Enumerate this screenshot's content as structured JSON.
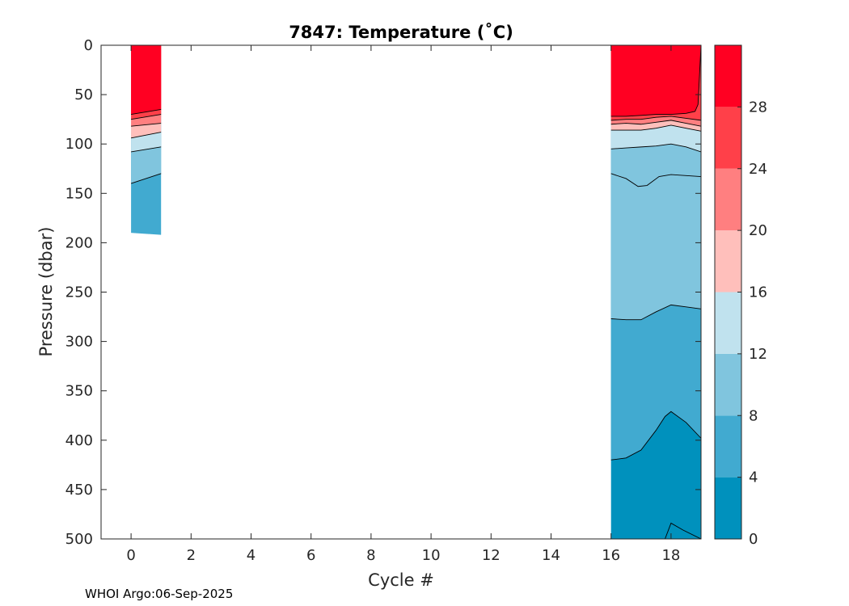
{
  "chart_data": {
    "type": "contour",
    "title": "7847:  Temperature (˚C)",
    "xlabel": "Cycle #",
    "ylabel": "Pressure (dbar)",
    "xlim": [
      -1,
      19
    ],
    "ylim": [
      0,
      500
    ],
    "y_reversed": true,
    "xticks": [
      "0",
      "2",
      "4",
      "6",
      "8",
      "10",
      "12",
      "14",
      "16",
      "18"
    ],
    "yticks": [
      "0",
      "50",
      "100",
      "150",
      "200",
      "250",
      "300",
      "350",
      "400",
      "450",
      "500"
    ],
    "colorbar": {
      "range": [
        0,
        32
      ],
      "tick_labels": [
        "0",
        "4",
        "8",
        "12",
        "16",
        "20",
        "24",
        "28"
      ],
      "levels": [
        {
          "min": 0,
          "max": 4,
          "color": "#0091bd"
        },
        {
          "min": 4,
          "max": 8,
          "color": "#41aad0"
        },
        {
          "min": 8,
          "max": 12,
          "color": "#80c5de"
        },
        {
          "min": 12,
          "max": 16,
          "color": "#c0e2ee"
        },
        {
          "min": 16,
          "max": 20,
          "color": "#ffbfbb"
        },
        {
          "min": 20,
          "max": 24,
          "color": "#ff7f80"
        },
        {
          "min": 24,
          "max": 28,
          "color": "#ff4049"
        },
        {
          "min": 28,
          "max": 32,
          "color": "#ff0022"
        }
      ]
    },
    "data_blocks": [
      {
        "name": "cycles 0-1",
        "x_range": [
          0,
          1
        ],
        "bottom_pressure": [
          190,
          192
        ],
        "isotherms": [
          {
            "level": 28,
            "x": [
              0,
              1
            ],
            "y": [
              70,
              65
            ]
          },
          {
            "level": 24,
            "x": [
              0,
              1
            ],
            "y": [
              75,
              70
            ]
          },
          {
            "level": 20,
            "x": [
              0,
              1
            ],
            "y": [
              82,
              79
            ]
          },
          {
            "level": 16,
            "x": [
              0,
              1
            ],
            "y": [
              94,
              88
            ]
          },
          {
            "level": 12,
            "x": [
              0,
              1
            ],
            "y": [
              108,
              103
            ]
          },
          {
            "level": 8,
            "x": [
              0,
              1
            ],
            "y": [
              140,
              130
            ]
          }
        ]
      },
      {
        "name": "cycles 16-19",
        "x_range": [
          16,
          19
        ],
        "bottom_pressure": [
          500,
          500
        ],
        "isotherms": [
          {
            "level": 28,
            "x": [
              16,
              16.5,
              17,
              17.5,
              18,
              18.5,
              18.8,
              18.9,
              19
            ],
            "y": [
              72,
              72,
              71,
              70,
              70,
              69,
              67,
              60,
              0
            ]
          },
          {
            "level": 24,
            "x": [
              16,
              16.5,
              17,
              17.5,
              18,
              18.5,
              19
            ],
            "y": [
              76,
              75,
              75,
              73,
              72,
              74,
              76
            ]
          },
          {
            "level": 20,
            "x": [
              16,
              16.5,
              17,
              17.5,
              18,
              18.5,
              19
            ],
            "y": [
              80,
              79,
              80,
              78,
              76,
              79,
              82
            ]
          },
          {
            "level": 16,
            "x": [
              16,
              16.5,
              17,
              17.5,
              18,
              18.5,
              19
            ],
            "y": [
              86,
              86,
              86,
              84,
              81,
              84,
              87
            ]
          },
          {
            "level": 12,
            "x": [
              16,
              16.5,
              17,
              17.5,
              18,
              18.5,
              19
            ],
            "y": [
              105,
              104,
              103,
              102,
              100,
              103,
              108
            ]
          },
          {
            "level": 8,
            "x": [
              16,
              16.5,
              16.9,
              17.2,
              17.6,
              18,
              18.5,
              19
            ],
            "y": [
              130,
              135,
              143,
              142,
              133,
              131,
              132,
              133
            ]
          },
          {
            "level": 8,
            "x": [
              16,
              16.5,
              17,
              17.5,
              18,
              18.5,
              19
            ],
            "y": [
              277,
              278,
              278,
              270,
              263,
              265,
              267
            ]
          },
          {
            "level": 4,
            "x": [
              16,
              16.5,
              17,
              17.5,
              17.8,
              18,
              18.5,
              19
            ],
            "y": [
              420,
              418,
              410,
              390,
              376,
              371,
              382,
              398
            ]
          },
          {
            "level": 4,
            "x": [
              17.8,
              18,
              18.4,
              19
            ],
            "y": [
              500,
              484,
              491,
              500
            ]
          }
        ]
      }
    ]
  },
  "footer": "WHOI Argo:06-Sep-2025"
}
